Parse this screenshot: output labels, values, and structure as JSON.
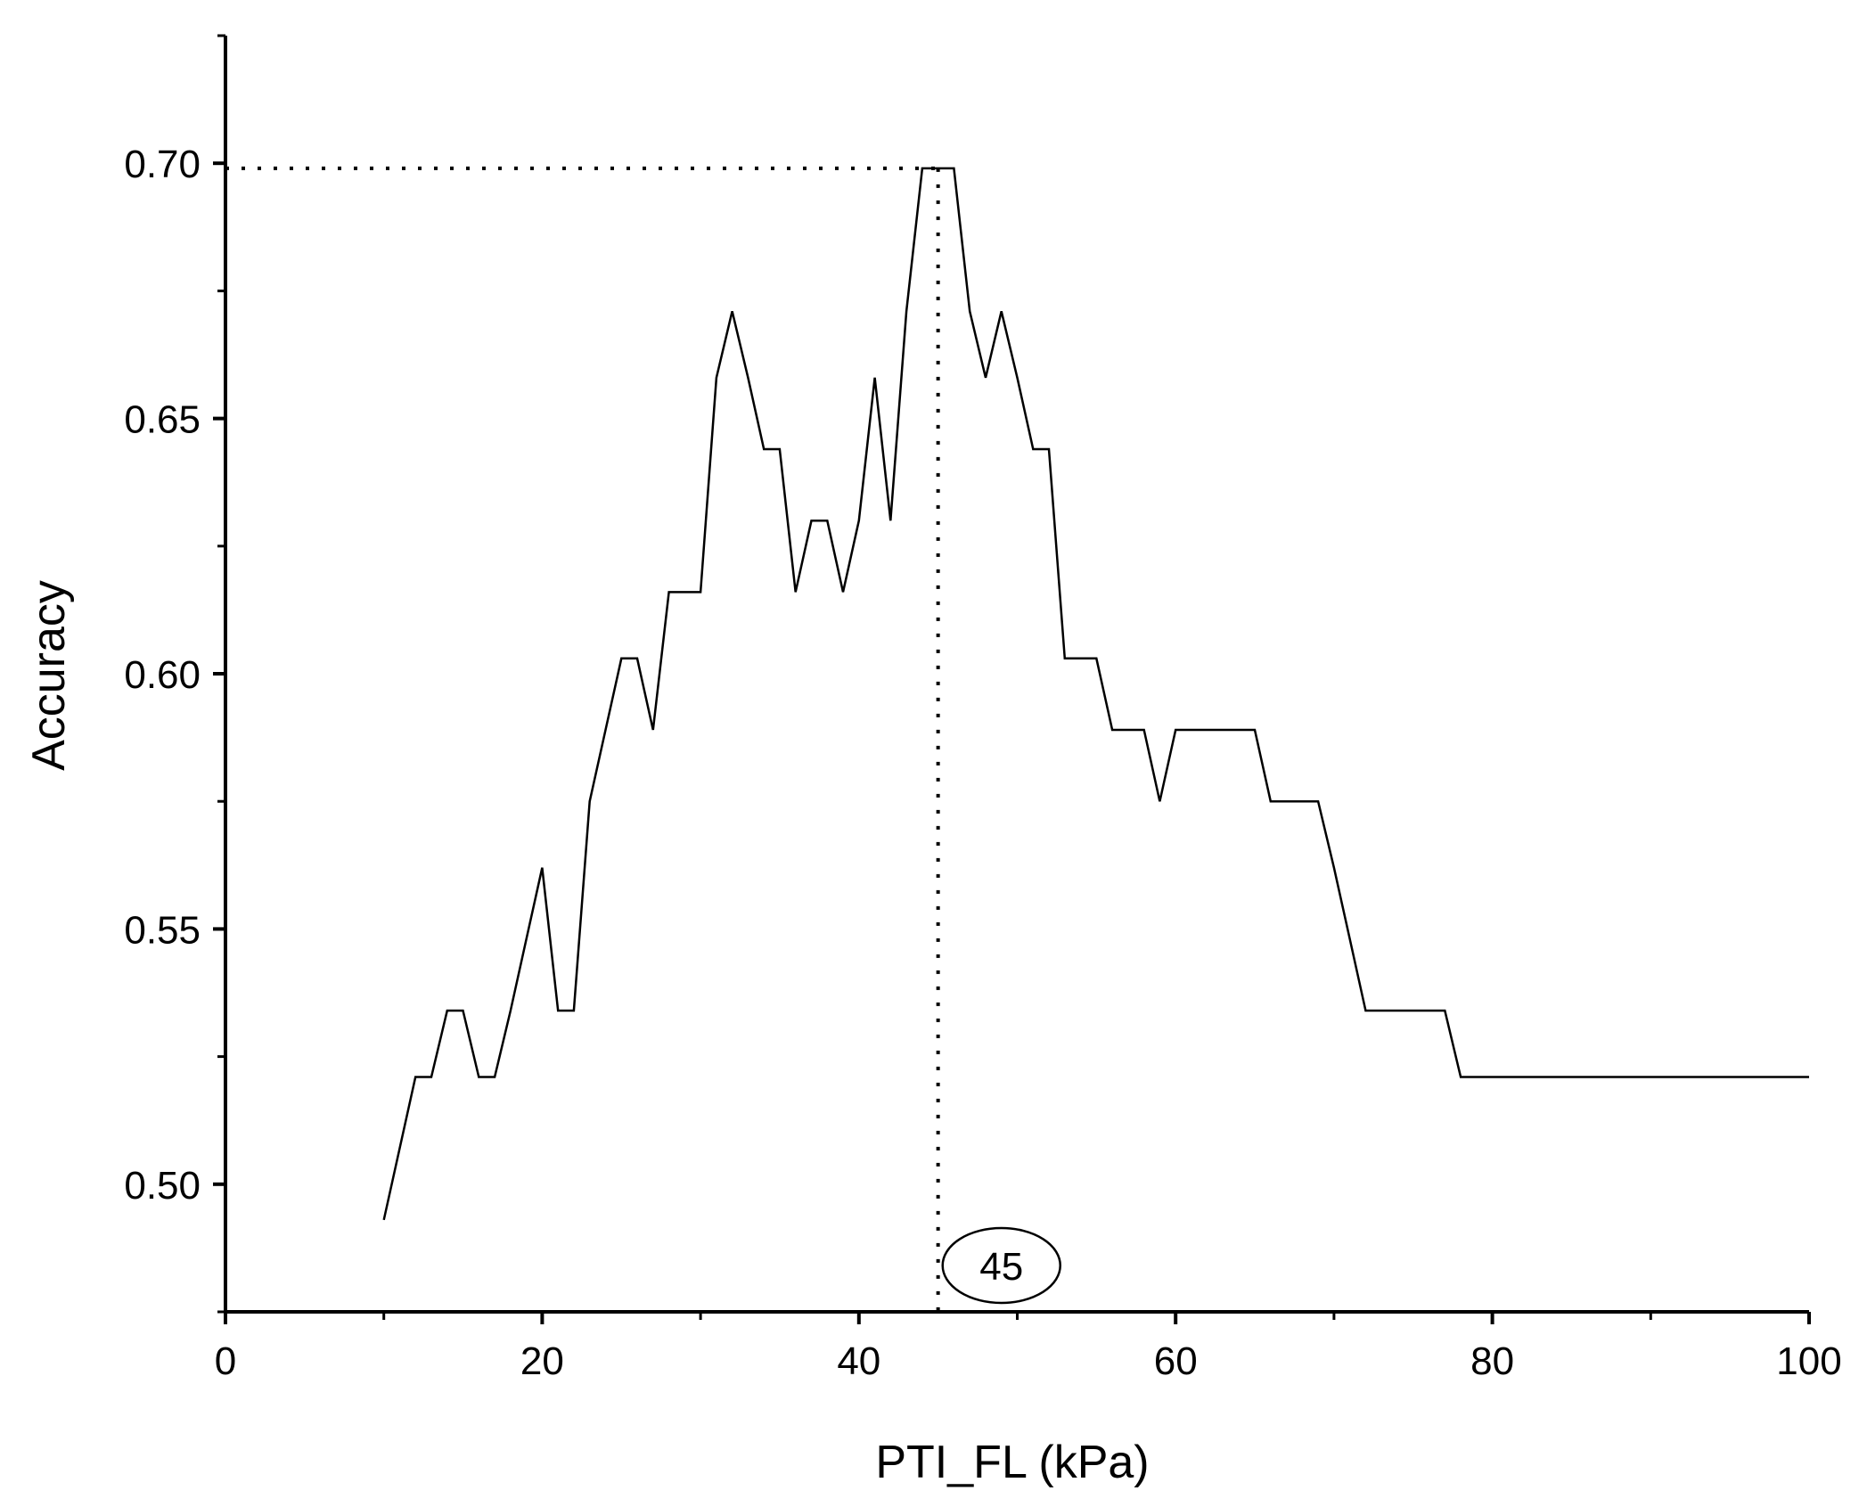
{
  "chart_data": {
    "type": "line",
    "title": "",
    "xlabel": "PTI_FL (kPa)",
    "ylabel": "Accuracy",
    "xlim": [
      0,
      100
    ],
    "ylim": [
      0.475,
      0.725
    ],
    "x_ticks": [
      0,
      20,
      40,
      60,
      80,
      100
    ],
    "x_tick_labels": [
      "0",
      "20",
      "40",
      "60",
      "80",
      "100"
    ],
    "y_ticks": [
      0.5,
      0.55,
      0.6,
      0.65,
      0.7
    ],
    "y_tick_labels": [
      "0.50",
      "0.55",
      "0.60",
      "0.65",
      "0.70"
    ],
    "grid": false,
    "legend": "none",
    "line_color": "#000000",
    "series": [
      {
        "x": [
          10,
          12,
          13,
          14,
          15,
          16,
          17,
          18,
          19,
          20,
          21,
          22,
          23,
          24,
          25,
          26,
          27,
          28,
          29,
          30,
          31,
          32,
          33,
          34,
          35,
          36,
          37,
          38,
          39,
          40,
          41,
          42,
          43,
          44,
          45,
          46,
          47,
          48,
          49,
          50,
          51,
          52,
          53,
          54,
          55,
          56,
          57,
          58,
          59,
          60,
          61,
          62,
          63,
          64,
          65,
          66,
          67,
          68,
          69,
          70,
          71,
          72,
          73,
          74,
          75,
          76,
          77,
          78,
          79,
          80,
          85,
          90,
          95,
          100
        ],
        "values": [
          0.493,
          0.521,
          0.521,
          0.534,
          0.534,
          0.521,
          0.521,
          0.534,
          0.548,
          0.562,
          0.534,
          0.534,
          0.575,
          0.589,
          0.603,
          0.603,
          0.589,
          0.616,
          0.616,
          0.616,
          0.658,
          0.671,
          0.658,
          0.644,
          0.644,
          0.616,
          0.63,
          0.63,
          0.616,
          0.63,
          0.658,
          0.63,
          0.671,
          0.699,
          0.699,
          0.699,
          0.671,
          0.658,
          0.671,
          0.658,
          0.644,
          0.644,
          0.603,
          0.603,
          0.603,
          0.589,
          0.589,
          0.589,
          0.575,
          0.589,
          0.589,
          0.589,
          0.589,
          0.589,
          0.589,
          0.575,
          0.575,
          0.575,
          0.575,
          0.562,
          0.548,
          0.534,
          0.534,
          0.534,
          0.534,
          0.534,
          0.534,
          0.521,
          0.521,
          0.521,
          0.521,
          0.521,
          0.521,
          0.521
        ]
      }
    ],
    "reference_lines": {
      "horizontal_y": 0.699,
      "vertical_x": 45,
      "style": "dotted"
    },
    "annotations": [
      {
        "text": "45",
        "x": 49,
        "shape": "ellipse"
      }
    ]
  }
}
